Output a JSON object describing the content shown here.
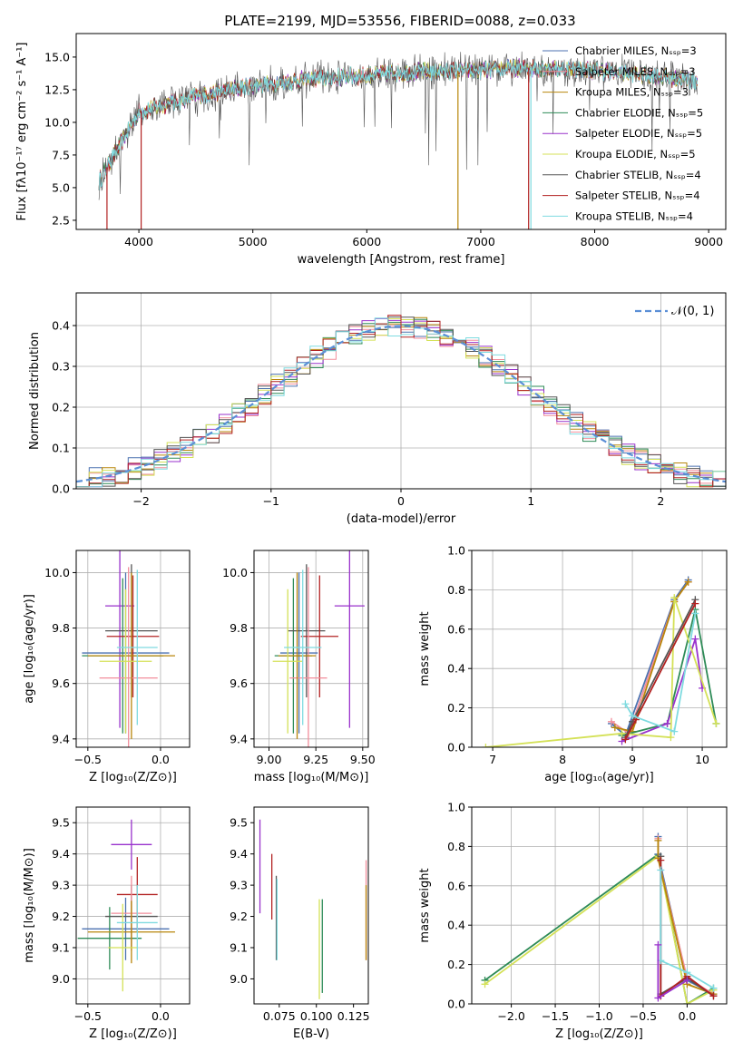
{
  "chart_data": [
    {
      "type": "line",
      "title": "PLATE=2199, MJD=53556, FIBERID=0088, z=0.033",
      "xlabel": "wavelength [Angstrom, rest frame]",
      "ylabel": "Flux [fλ10⁻¹⁷ erg cm⁻² s⁻¹ A⁻¹]",
      "xlim": [
        3450,
        9150
      ],
      "ylim": [
        1.8,
        16.8
      ],
      "xticks": [
        "4000",
        "5000",
        "6000",
        "7000",
        "8000",
        "9000"
      ],
      "yticks": [
        "2.5",
        "5.0",
        "7.5",
        "10.0",
        "12.5",
        "15.0"
      ],
      "grid": false,
      "legend_position": "top-right",
      "spectrum_range": [
        3650,
        8900
      ],
      "spectrum_trend": {
        "x": [
          3650,
          4000,
          4500,
          5000,
          5500,
          6000,
          6500,
          7000,
          7500,
          8000,
          8500,
          8900
        ],
        "y": [
          5.5,
          10.8,
          12.0,
          12.8,
          13.3,
          13.6,
          13.9,
          14.0,
          14.2,
          14.0,
          13.6,
          13.2
        ]
      },
      "series": [
        {
          "name": "Chabrier MILES, N_SSP=3",
          "color": "#4c72b0"
        },
        {
          "name": "Salpeter MILES, N_SSP=3",
          "color": "#f28e9b"
        },
        {
          "name": "Kroupa MILES, N_SSP=3",
          "color": "#b8860b"
        },
        {
          "name": "Chabrier ELODIE, N_SSP=5",
          "color": "#2e8b57"
        },
        {
          "name": "Salpeter ELODIE, N_SSP=5",
          "color": "#9932cc"
        },
        {
          "name": "Kroupa ELODIE, N_SSP=5",
          "color": "#d4e157"
        },
        {
          "name": "Chabrier STELIB, N_SSP=4",
          "color": "#555555"
        },
        {
          "name": "Salpeter STELIB, N_SSP=4",
          "color": "#b22222"
        },
        {
          "name": "Kroupa STELIB, N_SSP=4",
          "color": "#7fdbe0"
        }
      ]
    },
    {
      "type": "line",
      "xlabel": "(data-model)/error",
      "ylabel": "Normed distribution",
      "xlim": [
        -2.5,
        2.5
      ],
      "ylim": [
        0,
        0.48
      ],
      "xticks": [
        "−2",
        "−1",
        "0",
        "1",
        "2"
      ],
      "yticks": [
        "0.0",
        "0.1",
        "0.2",
        "0.3",
        "0.4"
      ],
      "grid": true,
      "legend_position": "top-right",
      "legend": "𝒩(0, 1)",
      "gaussian": {
        "mu": 0,
        "sigma": 1
      },
      "bin_width": 0.1
    },
    {
      "type": "scatter",
      "xlabel": "Z [log₁₀(Z/Z⊙)]",
      "ylabel": "age  [log₁₀(age/yr)]",
      "xlim": [
        -0.58,
        0.2
      ],
      "ylim": [
        9.37,
        10.08
      ],
      "xticks": [
        "−0.5",
        "0.0"
      ],
      "yticks": [
        "9.4",
        "9.6",
        "9.8",
        "10.0"
      ],
      "grid": true,
      "points": [
        {
          "x": -0.28,
          "xerr": 0.1,
          "y": 9.88,
          "yerr": 0.44,
          "c": 4
        },
        {
          "x": -0.24,
          "xerr": 0.3,
          "y": 9.71,
          "yerr": 0.29,
          "c": 0
        },
        {
          "x": -0.26,
          "xerr": 0.28,
          "y": 9.7,
          "yerr": 0.28,
          "c": 3
        },
        {
          "x": -0.2,
          "xerr": 0.18,
          "y": 9.79,
          "yerr": 0.24,
          "c": 6
        },
        {
          "x": -0.19,
          "xerr": 0.18,
          "y": 9.77,
          "yerr": 0.22,
          "c": 7
        },
        {
          "x": -0.22,
          "xerr": 0.2,
          "y": 9.62,
          "yerr": 0.4,
          "c": 1
        },
        {
          "x": -0.2,
          "xerr": 0.3,
          "y": 9.7,
          "yerr": 0.3,
          "c": 2
        },
        {
          "x": -0.24,
          "xerr": 0.18,
          "y": 9.68,
          "yerr": 0.26,
          "c": 5
        },
        {
          "x": -0.16,
          "xerr": 0.14,
          "y": 9.73,
          "yerr": 0.28,
          "c": 8
        }
      ]
    },
    {
      "type": "scatter",
      "xlabel": "mass [log₁₀(M/M⊙)]",
      "xlim": [
        8.92,
        9.53
      ],
      "ylim": [
        9.37,
        10.08
      ],
      "xticks": [
        "9.00",
        "9.25",
        "9.50"
      ],
      "yticks": [
        "9.4",
        "9.6",
        "9.8",
        "10.0"
      ],
      "grid": true,
      "points": [
        {
          "x": 9.43,
          "xerr": 0.08,
          "y": 9.88,
          "yerr": 0.44,
          "c": 4
        },
        {
          "x": 9.16,
          "xerr": 0.1,
          "y": 9.71,
          "yerr": 0.29,
          "c": 0
        },
        {
          "x": 9.13,
          "xerr": 0.1,
          "y": 9.7,
          "yerr": 0.28,
          "c": 3
        },
        {
          "x": 9.2,
          "xerr": 0.1,
          "y": 9.79,
          "yerr": 0.24,
          "c": 6
        },
        {
          "x": 9.27,
          "xerr": 0.1,
          "y": 9.77,
          "yerr": 0.22,
          "c": 7
        },
        {
          "x": 9.21,
          "xerr": 0.1,
          "y": 9.62,
          "yerr": 0.4,
          "c": 1
        },
        {
          "x": 9.15,
          "xerr": 0.1,
          "y": 9.7,
          "yerr": 0.3,
          "c": 2
        },
        {
          "x": 9.1,
          "xerr": 0.08,
          "y": 9.68,
          "yerr": 0.26,
          "c": 5
        },
        {
          "x": 9.18,
          "xerr": 0.1,
          "y": 9.73,
          "yerr": 0.28,
          "c": 8
        }
      ]
    },
    {
      "type": "line",
      "xlabel": "age  [log₁₀(age/yr)]",
      "ylabel": "mass weight",
      "xlim": [
        6.7,
        10.35
      ],
      "ylim": [
        0,
        1.0
      ],
      "xticks": [
        "7",
        "8",
        "9",
        "10"
      ],
      "yticks": [
        "0.0",
        "0.2",
        "0.4",
        "0.6",
        "0.8",
        "1.0"
      ],
      "grid": true,
      "series": [
        {
          "c": 0,
          "x": [
            8.7,
            8.9,
            9.6,
            9.8
          ],
          "y": [
            0.12,
            0.06,
            0.75,
            0.85
          ]
        },
        {
          "c": 1,
          "x": [
            8.7,
            8.95,
            9.6,
            9.8
          ],
          "y": [
            0.13,
            0.07,
            0.74,
            0.84
          ]
        },
        {
          "c": 2,
          "x": [
            8.75,
            9.0,
            9.6,
            9.8
          ],
          "y": [
            0.1,
            0.08,
            0.74,
            0.84
          ]
        },
        {
          "c": 3,
          "x": [
            8.85,
            9.5,
            9.9,
            10.2
          ],
          "y": [
            0.06,
            0.12,
            0.7,
            0.12
          ]
        },
        {
          "c": 4,
          "x": [
            8.85,
            9.5,
            9.9,
            10.0
          ],
          "y": [
            0.03,
            0.12,
            0.55,
            0.3
          ]
        },
        {
          "c": 5,
          "x": [
            6.9,
            8.85,
            9.55,
            9.6,
            10.2
          ],
          "y": [
            0.0,
            0.07,
            0.05,
            0.76,
            0.12
          ]
        },
        {
          "c": 6,
          "x": [
            8.9,
            9.0,
            9.9
          ],
          "y": [
            0.05,
            0.13,
            0.75
          ]
        },
        {
          "c": 7,
          "x": [
            8.9,
            9.05,
            9.9
          ],
          "y": [
            0.04,
            0.14,
            0.73
          ]
        },
        {
          "c": 8,
          "x": [
            8.9,
            9.0,
            9.6,
            9.9
          ],
          "y": [
            0.22,
            0.16,
            0.08,
            0.68
          ]
        }
      ]
    },
    {
      "type": "scatter",
      "xlabel": "Z [log₁₀(Z/Z⊙)]",
      "ylabel": "mass [log₁₀(M/M⊙)]",
      "xlim": [
        -0.58,
        0.2
      ],
      "ylim": [
        8.92,
        9.55
      ],
      "xticks": [
        "−0.5",
        "0.0"
      ],
      "yticks": [
        "9.0",
        "9.1",
        "9.2",
        "9.3",
        "9.4",
        "9.5"
      ],
      "grid": true,
      "points": [
        {
          "x": -0.2,
          "xerr": 0.14,
          "y": 9.43,
          "yerr": 0.08,
          "c": 4
        },
        {
          "x": -0.24,
          "xerr": 0.3,
          "y": 9.16,
          "yerr": 0.1,
          "c": 0
        },
        {
          "x": -0.35,
          "xerr": 0.22,
          "y": 9.13,
          "yerr": 0.1,
          "c": 3
        },
        {
          "x": -0.2,
          "xerr": 0.18,
          "y": 9.2,
          "yerr": 0.1,
          "c": 6
        },
        {
          "x": -0.16,
          "xerr": 0.14,
          "y": 9.27,
          "yerr": 0.12,
          "c": 7
        },
        {
          "x": -0.2,
          "xerr": 0.14,
          "y": 9.21,
          "yerr": 0.12,
          "c": 1
        },
        {
          "x": -0.2,
          "xerr": 0.3,
          "y": 9.15,
          "yerr": 0.1,
          "c": 2
        },
        {
          "x": -0.26,
          "xerr": 0.1,
          "y": 9.1,
          "yerr": 0.14,
          "c": 5
        },
        {
          "x": -0.16,
          "xerr": 0.14,
          "y": 9.18,
          "yerr": 0.12,
          "c": 8
        }
      ]
    },
    {
      "type": "scatter",
      "xlabel": "E(B-V)",
      "xlim": [
        0.058,
        0.135
      ],
      "ylim": [
        8.92,
        9.55
      ],
      "xticks": [
        "0.075",
        "0.100",
        "0.125"
      ],
      "yticks": [
        "9.0",
        "9.1",
        "9.2",
        "9.3",
        "9.4",
        "9.5"
      ],
      "grid": false,
      "points": [
        {
          "x": 0.062,
          "y": 9.36,
          "yerr": 0.15,
          "c": 4
        },
        {
          "x": 0.07,
          "y": 9.295,
          "yerr": 0.105,
          "c": 7
        },
        {
          "x": 0.073,
          "y": 9.195,
          "yerr": 0.135,
          "c": 6
        },
        {
          "x": 0.0735,
          "y": 9.19,
          "yerr": 0.13,
          "c": 8
        },
        {
          "x": 0.102,
          "y": 9.095,
          "yerr": 0.16,
          "c": 5
        },
        {
          "x": 0.104,
          "y": 9.105,
          "yerr": 0.15,
          "c": 3
        },
        {
          "x": 0.1335,
          "y": 9.22,
          "yerr": 0.16,
          "c": 1
        },
        {
          "x": 0.1335,
          "y": 9.18,
          "yerr": 0.12,
          "c": 2
        }
      ]
    },
    {
      "type": "line",
      "xlabel": "Z [log₁₀(Z/Z⊙)]",
      "ylabel": "mass weight",
      "xlim": [
        -2.45,
        0.45
      ],
      "ylim": [
        0,
        1.0
      ],
      "xticks": [
        "−2.0",
        "−1.5",
        "−1.0",
        "−0.5",
        "0.0"
      ],
      "yticks": [
        "0.0",
        "0.2",
        "0.4",
        "0.6",
        "0.8",
        "1.0"
      ],
      "grid": true,
      "series": [
        {
          "c": 3,
          "x": [
            -2.3,
            -0.33,
            0.0,
            0.3
          ],
          "y": [
            0.12,
            0.76,
            0.0,
            0.08
          ]
        },
        {
          "c": 5,
          "x": [
            -2.3,
            -0.33,
            0.0,
            0.3
          ],
          "y": [
            0.1,
            0.75,
            0.0,
            0.07
          ]
        },
        {
          "c": 0,
          "x": [
            -0.33,
            -0.33,
            0.0,
            0.3
          ],
          "y": [
            0.85,
            0.76,
            0.12,
            0.05
          ]
        },
        {
          "c": 1,
          "x": [
            -0.33,
            -0.33,
            0.0,
            0.3
          ],
          "y": [
            0.84,
            0.74,
            0.13,
            0.05
          ]
        },
        {
          "c": 2,
          "x": [
            -0.33,
            -0.33,
            0.0,
            0.3
          ],
          "y": [
            0.83,
            0.74,
            0.1,
            0.05
          ]
        },
        {
          "c": 6,
          "x": [
            -0.3,
            -0.3,
            0.0,
            0.3
          ],
          "y": [
            0.75,
            0.05,
            0.13,
            0.04
          ]
        },
        {
          "c": 7,
          "x": [
            -0.3,
            -0.3,
            0.0,
            0.3
          ],
          "y": [
            0.73,
            0.04,
            0.14,
            0.04
          ]
        },
        {
          "c": 8,
          "x": [
            -0.3,
            -0.3,
            0.0,
            0.3
          ],
          "y": [
            0.68,
            0.22,
            0.16,
            0.08
          ]
        },
        {
          "c": 4,
          "x": [
            -0.33,
            -0.33,
            0.0
          ],
          "y": [
            0.3,
            0.03,
            0.12
          ]
        }
      ]
    }
  ]
}
